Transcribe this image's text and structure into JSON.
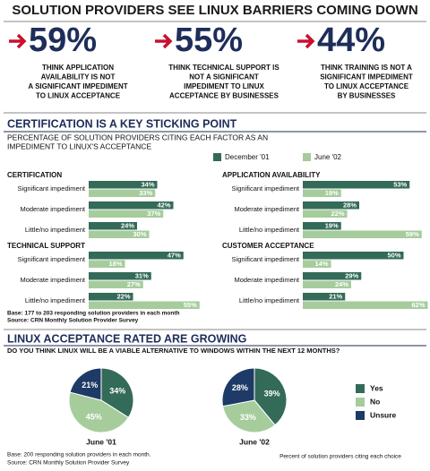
{
  "header": {
    "title": "SOLUTION PROVIDERS SEE LINUX BARRIERS COMING DOWN"
  },
  "stats": [
    {
      "figure": "59%",
      "lines": [
        "THINK APPLICATION",
        "AVAILABILITY IS NOT",
        "A SIGNIFICANT IMPEDIMENT",
        "TO LINUX ACCEPTANCE"
      ]
    },
    {
      "figure": "55%",
      "lines": [
        "THINK TECHNICAL SUPPORT IS",
        "NOT A SIGNIFICANT",
        "IMPEDIMENT TO LINUX",
        "ACCEPTANCE BY BUSINESSES"
      ]
    },
    {
      "figure": "44%",
      "lines": [
        "THINK TRAINING IS NOT A",
        "SIGNIFICANT IMPEDIMENT",
        "TO LINUX ACCEPTANCE",
        "BY BUSINESSES"
      ]
    }
  ],
  "bars": {
    "title": "CERTIFICATION IS A KEY STICKING POINT",
    "subtitle": [
      "PERCENTAGE OF SOLUTION PROVIDERS CITING EACH FACTOR AS AN",
      "IMPEDIMENT TO LINUX'S ACCEPTANCE"
    ],
    "legend": [
      {
        "name": "December '01",
        "color": "#336a58"
      },
      {
        "name": "June '02",
        "color": "#a6cc9c"
      }
    ],
    "panels": [
      {
        "title": "CERTIFICATION",
        "categories": [
          "Significant impediment",
          "Moderate impediment",
          "Little/no impediment"
        ],
        "series": [
          {
            "values": [
              34,
              42,
              24
            ],
            "value_labels": [
              "34%",
              "42%",
              "24%"
            ]
          },
          {
            "values": [
              33,
              37,
              30
            ],
            "value_labels": [
              "33%",
              "37%",
              "30%"
            ]
          }
        ]
      },
      {
        "title": "APPLICATION AVAILABILITY",
        "categories": [
          "Significant impediment",
          "Moderate impediment",
          "Little/no impediment"
        ],
        "series": [
          {
            "values": [
              53,
              28,
              19
            ],
            "value_labels": [
              "53%",
              "28%",
              "19%"
            ]
          },
          {
            "values": [
              19,
              22,
              59
            ],
            "value_labels": [
              "19%",
              "22%",
              "59%"
            ]
          }
        ]
      },
      {
        "title": "TECHNICAL SUPPORT",
        "categories": [
          "Significant impediment",
          "Moderate impediment",
          "Little/no impediment"
        ],
        "series": [
          {
            "values": [
              47,
              31,
              22
            ],
            "value_labels": [
              "47%",
              "31%",
              "22%"
            ]
          },
          {
            "values": [
              18,
              27,
              55
            ],
            "value_labels": [
              "18%",
              "27%",
              "55%"
            ]
          }
        ]
      },
      {
        "title": "CUSTOMER ACCEPTANCE",
        "categories": [
          "Significant impediment",
          "Moderate impediment",
          "Little/no impediment"
        ],
        "series": [
          {
            "values": [
              50,
              29,
              21
            ],
            "value_labels": [
              "50%",
              "29%",
              "21%"
            ]
          },
          {
            "values": [
              14,
              24,
              62
            ],
            "value_labels": [
              "14%",
              "24%",
              "62%"
            ]
          }
        ]
      }
    ],
    "base": "Base: 177 to 203 responding solution providers in each month",
    "source": "Source: CRN Monthly Solution Provider Survey"
  },
  "pies": {
    "title": "LINUX ACCEPTANCE RATED ARE GROWING",
    "subtitle": "DO YOU THINK LINUX WILL BE A VIABLE ALTERNATIVE TO WINDOWS WITHIN THE NEXT 12 MONTHS?",
    "categories": [
      "Yes",
      "No",
      "Unsure"
    ],
    "colors": [
      "#336a58",
      "#a6cc9c",
      "#1e3a66"
    ],
    "charts": [
      {
        "label": "June '01",
        "values": [
          34,
          45,
          21
        ],
        "value_labels": [
          "34%",
          "45%",
          "21%"
        ]
      },
      {
        "label": "June '02",
        "values": [
          39,
          33,
          28
        ],
        "value_labels": [
          "39%",
          "33%",
          "28%"
        ]
      }
    ],
    "base": "Base: 200 responding solution providers in each month.",
    "source": "Source: CRN Monthly Solution Provider Survey",
    "note": "Percent of solution providers citing each choice"
  }
}
